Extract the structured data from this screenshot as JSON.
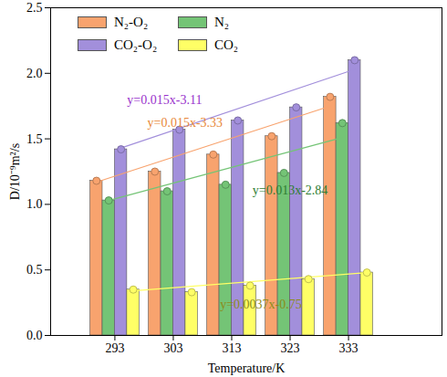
{
  "chart_data": {
    "type": "bar",
    "x_label": "Temperature/K",
    "y_label": "D/10⁻⁹m²/s",
    "categories": [
      293,
      303,
      313,
      323,
      333
    ],
    "ylim": [
      0,
      2.5
    ],
    "yticks": [
      {
        "value": 0,
        "label": "0.0"
      },
      {
        "value": 0.5,
        "label": "0.5"
      },
      {
        "value": 1,
        "label": "1.0"
      },
      {
        "value": 1.5,
        "label": "1.5"
      },
      {
        "value": 2,
        "label": "2.0"
      },
      {
        "value": 2.5,
        "label": "2.5"
      }
    ],
    "grid": false,
    "legend": "upper left",
    "marker": "circle",
    "series": [
      {
        "name": "N₂-O₂",
        "color": "#F8A36E",
        "values": [
          1.18,
          1.25,
          1.38,
          1.52,
          1.82
        ],
        "fit_line": [
          1.17,
          1.75
        ]
      },
      {
        "name": "N₂",
        "color": "#74C476",
        "values": [
          1.03,
          1.1,
          1.15,
          1.24,
          1.62
        ],
        "fit_line": [
          1.03,
          1.51
        ]
      },
      {
        "name": "CO₂-O₂",
        "color": "#A28FDB",
        "values": [
          1.42,
          1.57,
          1.64,
          1.74,
          2.1
        ],
        "fit_line": [
          1.43,
          2.03
        ]
      },
      {
        "name": "CO₂",
        "color": "#FFFF66",
        "values": [
          0.35,
          0.33,
          0.38,
          0.43,
          0.48
        ],
        "fit_line": [
          0.34,
          0.48
        ]
      }
    ],
    "annotations": [
      {
        "text": "y=0.015x-3.11",
        "x": 301.5,
        "y": 1.8,
        "color": "#9933CC"
      },
      {
        "text": "y=0.015x-3.33",
        "x": 305,
        "y": 1.62,
        "color": "#E8883A"
      },
      {
        "text": "y=0.013x-2.84",
        "x": 323,
        "y": 1.11,
        "color": "#2E7D32"
      },
      {
        "text": "y=0.0037x-0.75",
        "x": 318,
        "y": 0.24,
        "color": "#8C8C1A"
      }
    ]
  }
}
